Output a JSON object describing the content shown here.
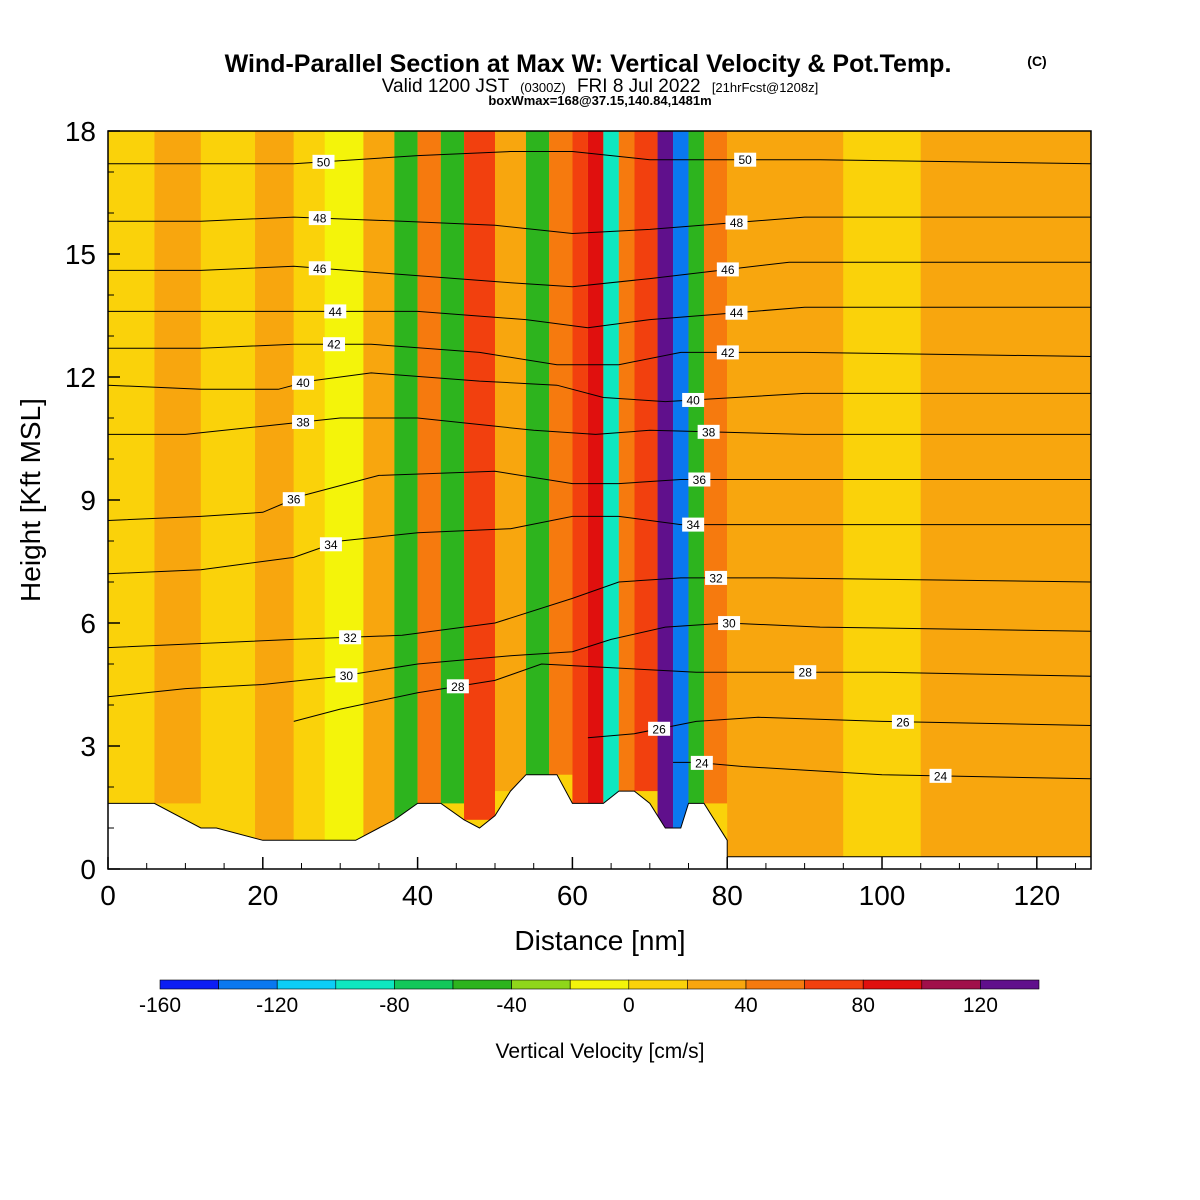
{
  "header": {
    "title": "Wind-Parallel Section at Max W: Vertical Velocity & Pot.Temp.",
    "title_mark": "(C)",
    "subtitle_prefix": "Valid 1200 JST",
    "subtitle_utc": "(0300Z)",
    "subtitle_date": "FRI 8 Jul 2022",
    "subtitle_fcst": "[21hrFcst@1208z]",
    "subtitle_box": "boxWmax=168@37.15,140.84,1481m"
  },
  "chart_data": {
    "type": "heatmap",
    "title": "Wind-Parallel Section at Max W: Vertical Velocity & Pot.Temp.",
    "xlabel": "Distance [nm]",
    "ylabel": "Height [Kft MSL]",
    "xlim": [
      0,
      127
    ],
    "ylim": [
      0,
      18
    ],
    "x_ticks": [
      0,
      20,
      40,
      60,
      80,
      100,
      120
    ],
    "y_ticks": [
      0,
      3,
      6,
      9,
      12,
      15,
      18
    ],
    "grid": false,
    "colorbar": {
      "label": "Vertical Velocity [cm/s]",
      "bounds": [
        -160,
        -140,
        -120,
        -100,
        -80,
        -60,
        -40,
        -20,
        0,
        20,
        40,
        60,
        80,
        100,
        120,
        140
      ],
      "tick_labels": [
        -160,
        -120,
        -80,
        -40,
        0,
        40,
        80,
        120
      ],
      "colors": [
        "#0c1ef4",
        "#0a78f0",
        "#0ccdf7",
        "#0ee7c0",
        "#12c85a",
        "#2db41e",
        "#8fd61b",
        "#f4f40a",
        "#fad20a",
        "#f8a60e",
        "#f67a0e",
        "#f2400e",
        "#e0100e",
        "#a0104a",
        "#60108c"
      ]
    },
    "vertical_velocity_bands": [
      {
        "x": [
          0,
          6
        ],
        "z": [
          1.6,
          18
        ],
        "w": 10
      },
      {
        "x": [
          6,
          12
        ],
        "z": [
          1.6,
          18
        ],
        "w": 20
      },
      {
        "x": [
          12,
          19
        ],
        "z": [
          1.6,
          18
        ],
        "w": 10
      },
      {
        "x": [
          19,
          24
        ],
        "z": [
          0.7,
          18
        ],
        "w": 25
      },
      {
        "x": [
          24,
          28
        ],
        "z": [
          0.7,
          18
        ],
        "w": 15
      },
      {
        "x": [
          28,
          33
        ],
        "z": [
          0.7,
          18
        ],
        "w": -10
      },
      {
        "x": [
          33,
          37
        ],
        "z": [
          0.7,
          18
        ],
        "w": 25
      },
      {
        "x": [
          37,
          40
        ],
        "z": [
          1.2,
          18
        ],
        "w": -50
      },
      {
        "x": [
          40,
          43
        ],
        "z": [
          1.6,
          18
        ],
        "w": 45
      },
      {
        "x": [
          43,
          46
        ],
        "z": [
          1.6,
          18
        ],
        "w": -60
      },
      {
        "x": [
          46,
          50
        ],
        "z": [
          1.2,
          18
        ],
        "w": 75
      },
      {
        "x": [
          50,
          54
        ],
        "z": [
          1.9,
          18
        ],
        "w": 30
      },
      {
        "x": [
          54,
          57
        ],
        "z": [
          2.3,
          18
        ],
        "w": -45
      },
      {
        "x": [
          57,
          60
        ],
        "z": [
          2.3,
          18
        ],
        "w": 50
      },
      {
        "x": [
          60,
          62
        ],
        "z": [
          1.6,
          18
        ],
        "w": 65
      },
      {
        "x": [
          62,
          64
        ],
        "z": [
          1.6,
          18
        ],
        "w": 90
      },
      {
        "x": [
          64,
          66
        ],
        "z": [
          1.6,
          18
        ],
        "w": -90
      },
      {
        "x": [
          66,
          68
        ],
        "z": [
          1.9,
          18
        ],
        "w": 50
      },
      {
        "x": [
          68,
          71
        ],
        "z": [
          1.9,
          18
        ],
        "w": 60
      },
      {
        "x": [
          71,
          73
        ],
        "z": [
          1.0,
          18
        ],
        "w": 140
      },
      {
        "x": [
          73,
          75
        ],
        "z": [
          1.0,
          18
        ],
        "w": -140
      },
      {
        "x": [
          75,
          77
        ],
        "z": [
          1.6,
          18
        ],
        "w": -55
      },
      {
        "x": [
          77,
          80
        ],
        "z": [
          1.6,
          18
        ],
        "w": 55
      },
      {
        "x": [
          80,
          95
        ],
        "z": [
          0.3,
          18
        ],
        "w": 25
      },
      {
        "x": [
          95,
          105
        ],
        "z": [
          0.3,
          18
        ],
        "w": 10
      },
      {
        "x": [
          105,
          127
        ],
        "z": [
          0.3,
          18
        ],
        "w": 30
      }
    ],
    "series": [
      {
        "name": "24",
        "points": [
          [
            73,
            2.6
          ],
          [
            76,
            2.6
          ],
          [
            82,
            2.5
          ],
          [
            100,
            2.3
          ],
          [
            127,
            2.2
          ]
        ]
      },
      {
        "name": "26",
        "points": [
          [
            62,
            3.2
          ],
          [
            68,
            3.3
          ],
          [
            76,
            3.6
          ],
          [
            84,
            3.7
          ],
          [
            100,
            3.6
          ],
          [
            127,
            3.5
          ]
        ]
      },
      {
        "name": "28",
        "points": [
          [
            24,
            3.6
          ],
          [
            30,
            3.9
          ],
          [
            40,
            4.3
          ],
          [
            50,
            4.6
          ],
          [
            56,
            5.0
          ],
          [
            66,
            4.9
          ],
          [
            76,
            4.8
          ],
          [
            84,
            4.8
          ],
          [
            100,
            4.8
          ],
          [
            127,
            4.7
          ]
        ]
      },
      {
        "name": "30",
        "points": [
          [
            0,
            4.2
          ],
          [
            10,
            4.4
          ],
          [
            20,
            4.5
          ],
          [
            30,
            4.7
          ],
          [
            40,
            5.0
          ],
          [
            52,
            5.2
          ],
          [
            60,
            5.3
          ],
          [
            65,
            5.6
          ],
          [
            72,
            5.9
          ],
          [
            80,
            6.0
          ],
          [
            92,
            5.9
          ],
          [
            127,
            5.8
          ]
        ]
      },
      {
        "name": "32",
        "points": [
          [
            0,
            5.4
          ],
          [
            12,
            5.5
          ],
          [
            24,
            5.6
          ],
          [
            38,
            5.7
          ],
          [
            50,
            6.0
          ],
          [
            60,
            6.6
          ],
          [
            66,
            7.0
          ],
          [
            74,
            7.1
          ],
          [
            86,
            7.1
          ],
          [
            127,
            7.0
          ]
        ]
      },
      {
        "name": "34",
        "points": [
          [
            0,
            7.2
          ],
          [
            12,
            7.3
          ],
          [
            24,
            7.6
          ],
          [
            30,
            8.0
          ],
          [
            40,
            8.2
          ],
          [
            52,
            8.3
          ],
          [
            60,
            8.6
          ],
          [
            66,
            8.6
          ],
          [
            74,
            8.4
          ],
          [
            82,
            8.4
          ],
          [
            127,
            8.4
          ]
        ]
      },
      {
        "name": "36",
        "points": [
          [
            0,
            8.5
          ],
          [
            12,
            8.6
          ],
          [
            20,
            8.7
          ],
          [
            25,
            9.1
          ],
          [
            35,
            9.6
          ],
          [
            50,
            9.7
          ],
          [
            60,
            9.4
          ],
          [
            66,
            9.4
          ],
          [
            74,
            9.5
          ],
          [
            86,
            9.5
          ],
          [
            127,
            9.5
          ]
        ]
      },
      {
        "name": "38",
        "points": [
          [
            0,
            10.6
          ],
          [
            10,
            10.6
          ],
          [
            20,
            10.8
          ],
          [
            30,
            11.0
          ],
          [
            40,
            11.0
          ],
          [
            55,
            10.7
          ],
          [
            63,
            10.6
          ],
          [
            70,
            10.7
          ],
          [
            90,
            10.6
          ],
          [
            127,
            10.6
          ]
        ]
      },
      {
        "name": "40",
        "points": [
          [
            0,
            11.8
          ],
          [
            12,
            11.7
          ],
          [
            22,
            11.7
          ],
          [
            26,
            11.9
          ],
          [
            34,
            12.1
          ],
          [
            48,
            11.9
          ],
          [
            58,
            11.8
          ],
          [
            64,
            11.5
          ],
          [
            72,
            11.4
          ],
          [
            90,
            11.6
          ],
          [
            127,
            11.6
          ]
        ]
      },
      {
        "name": "42",
        "points": [
          [
            0,
            12.7
          ],
          [
            12,
            12.7
          ],
          [
            24,
            12.8
          ],
          [
            34,
            12.8
          ],
          [
            48,
            12.6
          ],
          [
            58,
            12.3
          ],
          [
            66,
            12.3
          ],
          [
            74,
            12.6
          ],
          [
            90,
            12.6
          ],
          [
            127,
            12.5
          ]
        ]
      },
      {
        "name": "44",
        "points": [
          [
            0,
            13.6
          ],
          [
            12,
            13.6
          ],
          [
            26,
            13.6
          ],
          [
            40,
            13.6
          ],
          [
            54,
            13.4
          ],
          [
            62,
            13.2
          ],
          [
            70,
            13.4
          ],
          [
            90,
            13.7
          ],
          [
            127,
            13.7
          ]
        ]
      },
      {
        "name": "46",
        "points": [
          [
            0,
            14.6
          ],
          [
            12,
            14.6
          ],
          [
            24,
            14.7
          ],
          [
            38,
            14.5
          ],
          [
            52,
            14.3
          ],
          [
            60,
            14.2
          ],
          [
            70,
            14.4
          ],
          [
            88,
            14.8
          ],
          [
            127,
            14.8
          ]
        ]
      },
      {
        "name": "48",
        "points": [
          [
            0,
            15.8
          ],
          [
            12,
            15.8
          ],
          [
            24,
            15.9
          ],
          [
            38,
            15.8
          ],
          [
            50,
            15.7
          ],
          [
            60,
            15.5
          ],
          [
            70,
            15.6
          ],
          [
            90,
            15.9
          ],
          [
            127,
            15.9
          ]
        ]
      },
      {
        "name": "50",
        "points": [
          [
            0,
            17.2
          ],
          [
            12,
            17.2
          ],
          [
            24,
            17.2
          ],
          [
            40,
            17.4
          ],
          [
            52,
            17.5
          ],
          [
            60,
            17.5
          ],
          [
            70,
            17.3
          ],
          [
            92,
            17.3
          ],
          [
            127,
            17.2
          ]
        ]
      }
    ],
    "terrain_top": [
      [
        0,
        1.6
      ],
      [
        6,
        1.6
      ],
      [
        12,
        1.0
      ],
      [
        14,
        1.0
      ],
      [
        20,
        0.7
      ],
      [
        24,
        0.7
      ],
      [
        32,
        0.7
      ],
      [
        35,
        1.0
      ],
      [
        37,
        1.2
      ],
      [
        40,
        1.6
      ],
      [
        43,
        1.6
      ],
      [
        46,
        1.2
      ],
      [
        48,
        1.0
      ],
      [
        50,
        1.3
      ],
      [
        52,
        1.9
      ],
      [
        54,
        2.3
      ],
      [
        58,
        2.3
      ],
      [
        60,
        1.6
      ],
      [
        64,
        1.6
      ],
      [
        66,
        1.9
      ],
      [
        68,
        1.9
      ],
      [
        70,
        1.6
      ],
      [
        72,
        1.0
      ],
      [
        74,
        1.0
      ],
      [
        75,
        1.6
      ],
      [
        77,
        1.6
      ],
      [
        80,
        0.7
      ],
      [
        80,
        0.3
      ],
      [
        127,
        0.3
      ]
    ]
  }
}
